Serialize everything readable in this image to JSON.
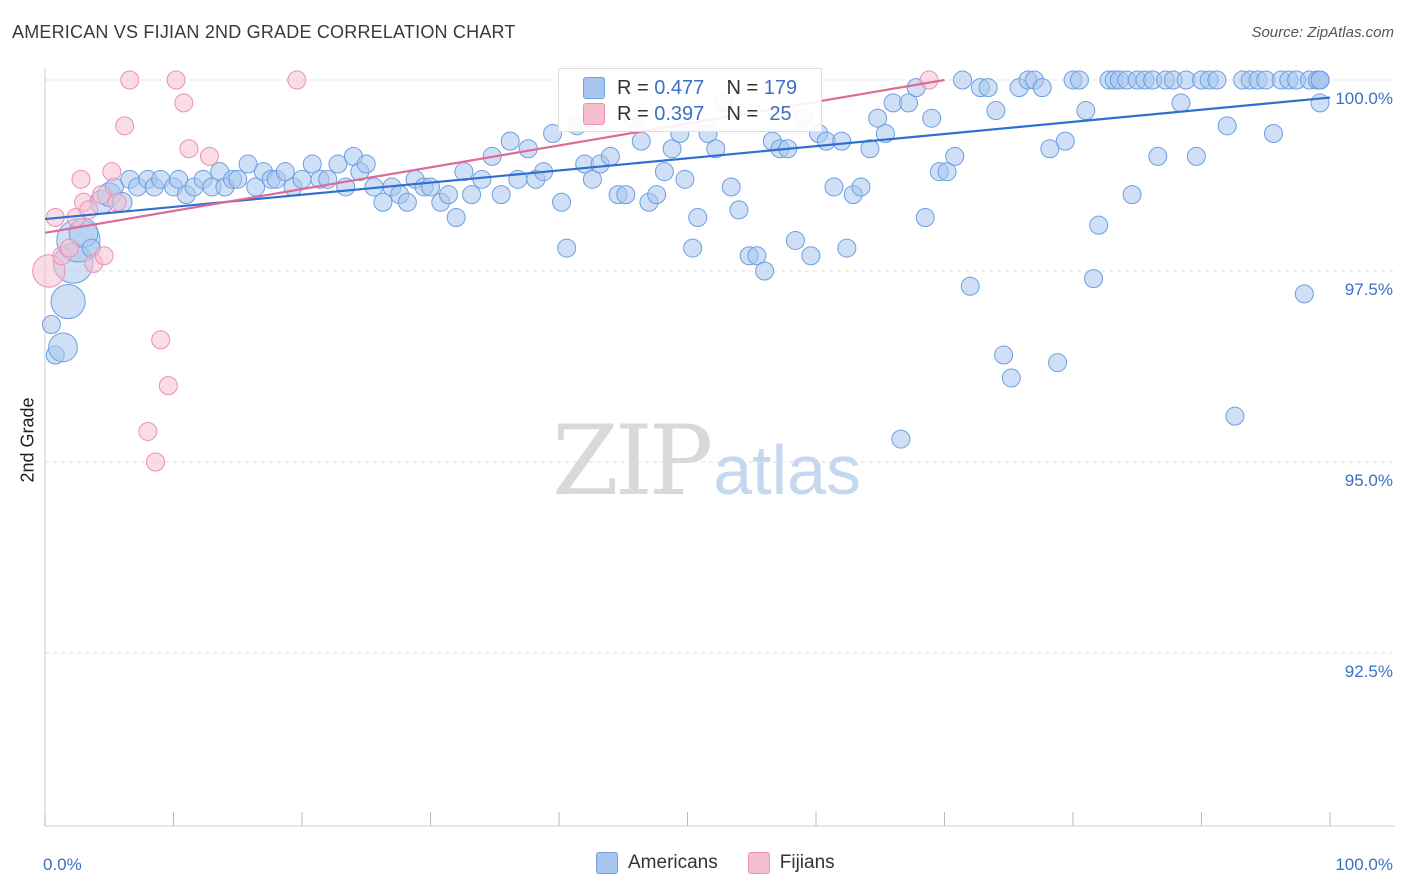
{
  "header": {
    "title": "AMERICAN VS FIJIAN 2ND GRADE CORRELATION CHART",
    "source": "Source: ZipAtlas.com"
  },
  "watermark": {
    "zip": "ZIP",
    "atlas": "atlas"
  },
  "legend": {
    "rows": [
      {
        "r_label": "R =",
        "r_value": "0.477",
        "n_label": "N =",
        "n_value": "179"
      },
      {
        "r_label": "R =",
        "r_value": "0.397",
        "n_label": "N =",
        "n_value": " 25"
      }
    ]
  },
  "bottom_legend": {
    "americans": "Americans",
    "fijians": "Fijians"
  },
  "colors": {
    "americans_fill": "#a8c6ef",
    "americans_stroke": "#6d9ee0",
    "americans_line": "#2e6fd0",
    "fijians_fill": "#f6bfd0",
    "fijians_stroke": "#ee8fb0",
    "fijians_line": "#e06a94",
    "tick_label": "#3c6fc5",
    "grid": "#dddddd"
  },
  "chart_data": {
    "type": "scatter",
    "title": "AMERICAN VS FIJIAN 2ND GRADE CORRELATION CHART",
    "xlabel": "",
    "ylabel": "2nd Grade",
    "xlim": [
      0,
      100
    ],
    "ylim": [
      90.8,
      100.2
    ],
    "x_tick_labels": [
      "0.0%",
      "100.0%"
    ],
    "y_ticks": [
      92.5,
      95.0,
      97.5,
      100.0
    ],
    "y_tick_labels": [
      "92.5%",
      "95.0%",
      "97.5%",
      "100.0%"
    ],
    "grid": "horizontal-dashed",
    "legend_placement": "top-center",
    "series": [
      {
        "name": "Americans",
        "r": 0.477,
        "n": 179,
        "trend": {
          "x": [
            0,
            100
          ],
          "y": [
            98.18,
            99.77
          ]
        },
        "points": [
          [
            0.5,
            96.8,
            1
          ],
          [
            0.8,
            96.4,
            1
          ],
          [
            1.4,
            96.5,
            1.6
          ],
          [
            1.8,
            97.1,
            1.9
          ],
          [
            2.2,
            97.6,
            2.2
          ],
          [
            2.6,
            97.9,
            2.4
          ],
          [
            3.0,
            98.0,
            1.6
          ],
          [
            3.6,
            97.8,
            1
          ],
          [
            4.4,
            98.4,
            1.3
          ],
          [
            5.0,
            98.5,
            1.3
          ],
          [
            5.4,
            98.6,
            1
          ],
          [
            6.0,
            98.4,
            1.1
          ],
          [
            6.6,
            98.7,
            1
          ],
          [
            7.2,
            98.6,
            1
          ],
          [
            8.0,
            98.7,
            1
          ],
          [
            8.5,
            98.6,
            1
          ],
          [
            9.0,
            98.7,
            1
          ],
          [
            10.0,
            98.6,
            1
          ],
          [
            10.4,
            98.7,
            1
          ],
          [
            11.0,
            98.5,
            1
          ],
          [
            11.6,
            98.6,
            1
          ],
          [
            12.3,
            98.7,
            1
          ],
          [
            13.0,
            98.6,
            1
          ],
          [
            13.6,
            98.8,
            1
          ],
          [
            14.0,
            98.6,
            1
          ],
          [
            14.6,
            98.7,
            1
          ],
          [
            15.0,
            98.7,
            1
          ],
          [
            15.8,
            98.9,
            1
          ],
          [
            16.4,
            98.6,
            1
          ],
          [
            17.0,
            98.8,
            1
          ],
          [
            17.6,
            98.7,
            1
          ],
          [
            18.0,
            98.7,
            1
          ],
          [
            18.7,
            98.8,
            1
          ],
          [
            19.3,
            98.6,
            1
          ],
          [
            20.0,
            98.7,
            1
          ],
          [
            20.8,
            98.9,
            1
          ],
          [
            21.4,
            98.7,
            1
          ],
          [
            22.0,
            98.7,
            1
          ],
          [
            22.8,
            98.9,
            1
          ],
          [
            23.4,
            98.6,
            1
          ],
          [
            24.0,
            99.0,
            1
          ],
          [
            24.5,
            98.8,
            1
          ],
          [
            25.0,
            98.9,
            1
          ],
          [
            25.6,
            98.6,
            1
          ],
          [
            26.3,
            98.4,
            1
          ],
          [
            27.0,
            98.6,
            1
          ],
          [
            27.6,
            98.5,
            1
          ],
          [
            28.2,
            98.4,
            1
          ],
          [
            28.8,
            98.7,
            1
          ],
          [
            29.5,
            98.6,
            1
          ],
          [
            30.0,
            98.6,
            1
          ],
          [
            30.8,
            98.4,
            1
          ],
          [
            31.4,
            98.5,
            1
          ],
          [
            32.0,
            98.2,
            1
          ],
          [
            32.6,
            98.8,
            1
          ],
          [
            33.2,
            98.5,
            1
          ],
          [
            34.0,
            98.7,
            1
          ],
          [
            34.8,
            99.0,
            1
          ],
          [
            35.5,
            98.5,
            1
          ],
          [
            36.2,
            99.2,
            1
          ],
          [
            36.8,
            98.7,
            1
          ],
          [
            37.6,
            99.1,
            1
          ],
          [
            38.2,
            98.7,
            1
          ],
          [
            38.8,
            98.8,
            1
          ],
          [
            39.5,
            99.3,
            1
          ],
          [
            40.2,
            98.4,
            1
          ],
          [
            40.6,
            97.8,
            1
          ],
          [
            41.4,
            99.4,
            1
          ],
          [
            42.0,
            98.9,
            1
          ],
          [
            42.6,
            98.7,
            1
          ],
          [
            43.2,
            98.9,
            1
          ],
          [
            44.0,
            99.0,
            1
          ],
          [
            44.6,
            98.5,
            1
          ],
          [
            45.2,
            98.5,
            1
          ],
          [
            45.8,
            99.5,
            1
          ],
          [
            46.4,
            99.2,
            1
          ],
          [
            47.0,
            98.4,
            1
          ],
          [
            47.6,
            98.5,
            1
          ],
          [
            48.2,
            98.8,
            1
          ],
          [
            48.8,
            99.1,
            1
          ],
          [
            49.4,
            99.3,
            1
          ],
          [
            49.8,
            98.7,
            1
          ],
          [
            50.4,
            97.8,
            1
          ],
          [
            50.8,
            98.2,
            1
          ],
          [
            51.6,
            99.3,
            1
          ],
          [
            52.2,
            99.1,
            1
          ],
          [
            52.8,
            99.7,
            1
          ],
          [
            53.4,
            98.6,
            1
          ],
          [
            54.0,
            98.3,
            1
          ],
          [
            54.8,
            97.7,
            1
          ],
          [
            55.4,
            97.7,
            1
          ],
          [
            56.0,
            97.5,
            1
          ],
          [
            56.6,
            99.2,
            1
          ],
          [
            57.2,
            99.1,
            1
          ],
          [
            57.8,
            99.1,
            1
          ],
          [
            58.4,
            97.9,
            1
          ],
          [
            59.0,
            99.5,
            1
          ],
          [
            59.6,
            97.7,
            1
          ],
          [
            60.2,
            99.3,
            1
          ],
          [
            60.8,
            99.2,
            1
          ],
          [
            61.4,
            98.6,
            1
          ],
          [
            62.0,
            99.2,
            1
          ],
          [
            62.4,
            97.8,
            1
          ],
          [
            62.9,
            98.5,
            1
          ],
          [
            63.5,
            98.6,
            1
          ],
          [
            64.2,
            99.1,
            1
          ],
          [
            64.8,
            99.5,
            1
          ],
          [
            65.4,
            99.3,
            1
          ],
          [
            66.0,
            99.7,
            1
          ],
          [
            66.6,
            95.3,
            1
          ],
          [
            67.2,
            99.7,
            1
          ],
          [
            67.8,
            99.9,
            1
          ],
          [
            68.5,
            98.2,
            1
          ],
          [
            69.0,
            99.5,
            1
          ],
          [
            69.6,
            98.8,
            1
          ],
          [
            70.2,
            98.8,
            1
          ],
          [
            70.8,
            99.0,
            1
          ],
          [
            71.4,
            100.0,
            1
          ],
          [
            72.0,
            97.3,
            1
          ],
          [
            72.8,
            99.9,
            1
          ],
          [
            73.4,
            99.9,
            1
          ],
          [
            74.0,
            99.6,
            1
          ],
          [
            74.6,
            96.4,
            1
          ],
          [
            75.2,
            96.1,
            1
          ],
          [
            75.8,
            99.9,
            1
          ],
          [
            76.5,
            100.0,
            1
          ],
          [
            77.0,
            100.0,
            1
          ],
          [
            77.6,
            99.9,
            1
          ],
          [
            78.2,
            99.1,
            1
          ],
          [
            78.8,
            96.3,
            1
          ],
          [
            79.4,
            99.2,
            1
          ],
          [
            80.0,
            100.0,
            1
          ],
          [
            80.5,
            100.0,
            1
          ],
          [
            81.0,
            99.6,
            1
          ],
          [
            81.6,
            97.4,
            1
          ],
          [
            82.0,
            98.1,
            1
          ],
          [
            82.8,
            100.0,
            1
          ],
          [
            83.2,
            100.0,
            1
          ],
          [
            83.6,
            100.0,
            1
          ],
          [
            84.2,
            100.0,
            1
          ],
          [
            84.6,
            98.5,
            1
          ],
          [
            85.0,
            100.0,
            1
          ],
          [
            85.6,
            100.0,
            1
          ],
          [
            86.2,
            100.0,
            1
          ],
          [
            86.6,
            99.0,
            1
          ],
          [
            87.2,
            100.0,
            1
          ],
          [
            87.8,
            100.0,
            1
          ],
          [
            88.4,
            99.7,
            1
          ],
          [
            88.8,
            100.0,
            1
          ],
          [
            89.6,
            99.0,
            1
          ],
          [
            90.0,
            100.0,
            1
          ],
          [
            90.6,
            100.0,
            1
          ],
          [
            91.2,
            100.0,
            1
          ],
          [
            92.0,
            99.4,
            1
          ],
          [
            92.6,
            95.6,
            1
          ],
          [
            93.2,
            100.0,
            1
          ],
          [
            93.8,
            100.0,
            1
          ],
          [
            94.4,
            100.0,
            1
          ],
          [
            95.0,
            100.0,
            1
          ],
          [
            95.6,
            99.3,
            1
          ],
          [
            96.2,
            100.0,
            1
          ],
          [
            96.8,
            100.0,
            1
          ],
          [
            97.4,
            100.0,
            1
          ],
          [
            98.0,
            97.2,
            1
          ],
          [
            98.4,
            100.0,
            1
          ],
          [
            99.0,
            100.0,
            1
          ],
          [
            99.4,
            100.0,
            1
          ],
          [
            100.0,
            100.0,
            1
          ],
          [
            100.4,
            100.0,
            1
          ],
          [
            101.2,
            99.7,
            1
          ],
          [
            102.0,
            100.0,
            1
          ],
          [
            102.6,
            100.0,
            1
          ],
          [
            103.2,
            100.0,
            1
          ],
          [
            103.8,
            100.0,
            1
          ]
        ]
      },
      {
        "name": "Fijians",
        "r": 0.397,
        "n": 25,
        "trend": {
          "x": [
            0,
            70
          ],
          "y": [
            98.0,
            100.0
          ]
        },
        "points": [
          [
            0.3,
            97.5,
            1.8
          ],
          [
            0.8,
            98.2,
            1
          ],
          [
            1.3,
            97.7,
            1
          ],
          [
            1.9,
            97.8,
            1
          ],
          [
            2.4,
            98.2,
            1
          ],
          [
            2.8,
            98.7,
            1
          ],
          [
            3.0,
            98.4,
            1
          ],
          [
            3.4,
            98.3,
            1
          ],
          [
            3.8,
            97.6,
            1
          ],
          [
            4.4,
            98.5,
            1
          ],
          [
            4.6,
            97.7,
            1
          ],
          [
            5.2,
            98.8,
            1
          ],
          [
            5.6,
            98.4,
            1
          ],
          [
            6.2,
            99.4,
            1
          ],
          [
            6.6,
            100.0,
            1
          ],
          [
            8.0,
            95.4,
            1
          ],
          [
            8.6,
            95.0,
            1
          ],
          [
            9.0,
            96.6,
            1
          ],
          [
            9.6,
            96.0,
            1
          ],
          [
            10.2,
            100.0,
            1
          ],
          [
            10.8,
            99.7,
            1
          ],
          [
            11.2,
            99.1,
            1
          ],
          [
            12.8,
            99.0,
            1
          ],
          [
            19.6,
            100.0,
            1
          ],
          [
            68.8,
            100.0,
            1
          ]
        ]
      }
    ]
  }
}
